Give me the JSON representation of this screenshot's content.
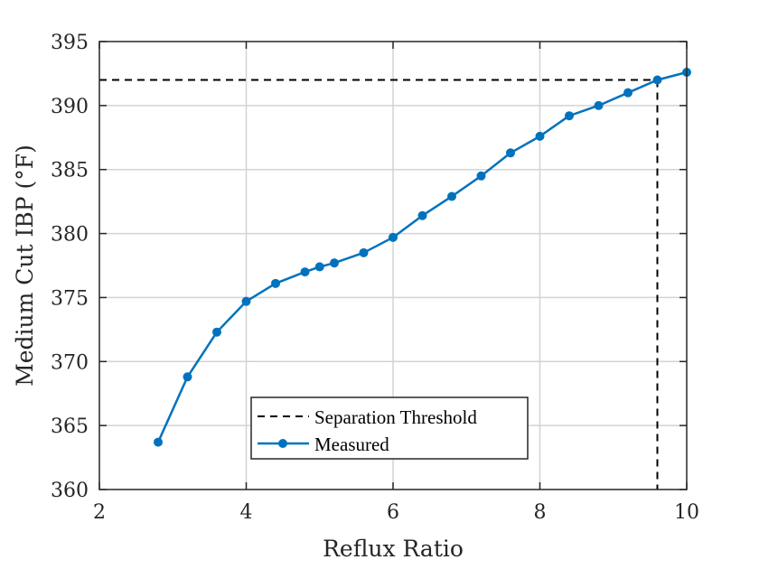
{
  "chart_data": {
    "type": "line",
    "xlabel": "Reflux Ratio",
    "ylabel": "Medium Cut IBP (°F)",
    "xlim": [
      2,
      10
    ],
    "ylim": [
      360,
      395
    ],
    "x_ticks": [
      2,
      4,
      6,
      8,
      10
    ],
    "y_ticks": [
      360,
      365,
      370,
      375,
      380,
      385,
      390,
      395
    ],
    "x_tick_labels": [
      "2",
      "4",
      "6",
      "8",
      "10"
    ],
    "y_tick_labels": [
      "360",
      "365",
      "370",
      "375",
      "380",
      "385",
      "390",
      "395"
    ],
    "grid": true,
    "legend_position": "bottom-center",
    "series": [
      {
        "name": "Measured",
        "color": "#0072BD",
        "marker": "circle",
        "x": [
          2.8,
          3.2,
          3.6,
          4.0,
          4.4,
          4.8,
          5.0,
          5.2,
          5.6,
          6.0,
          6.4,
          6.8,
          7.2,
          7.6,
          8.0,
          8.4,
          8.8,
          9.2,
          9.6,
          10.0
        ],
        "y": [
          363.7,
          368.8,
          372.3,
          374.7,
          376.1,
          377.0,
          377.4,
          377.7,
          378.5,
          379.7,
          381.4,
          382.9,
          384.5,
          386.3,
          387.6,
          389.2,
          390.0,
          391.0,
          392.0,
          392.6
        ]
      }
    ],
    "threshold": {
      "name": "Separation Threshold",
      "color": "#000000",
      "style": "dashed",
      "y": 392,
      "x": 9.6
    }
  }
}
